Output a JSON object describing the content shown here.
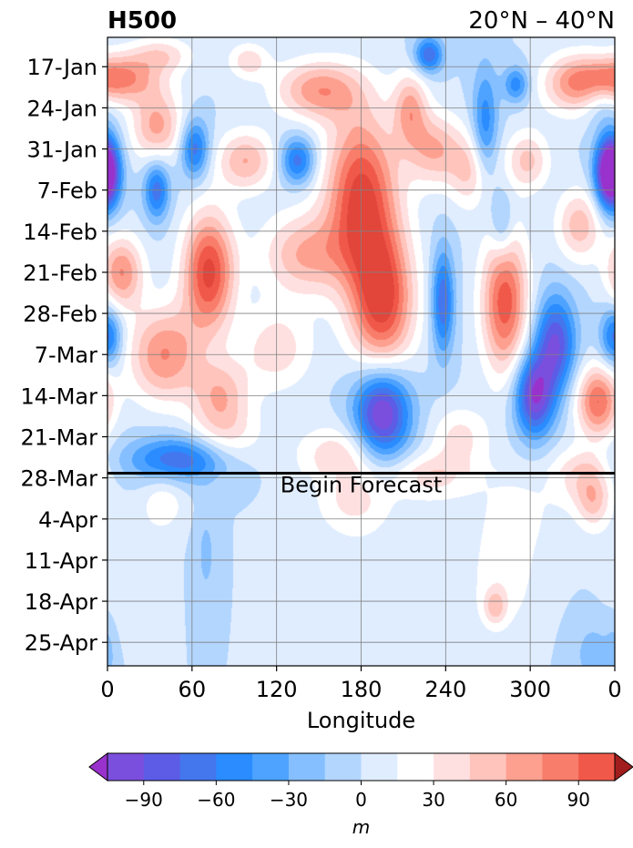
{
  "chart_data": {
    "type": "heatmap",
    "title_left": "H500",
    "title_right": "20°N – 40°N",
    "xlabel": "Longitude",
    "ylabel": "",
    "x_ticks": [
      "0",
      "60",
      "120",
      "180",
      "240",
      "300",
      "0"
    ],
    "x_tick_values": [
      0,
      60,
      120,
      180,
      240,
      300,
      360
    ],
    "xlim": [
      0,
      360
    ],
    "y_ticks": [
      "17-Jan",
      "24-Jan",
      "31-Jan",
      "7-Feb",
      "14-Feb",
      "21-Feb",
      "28-Feb",
      "7-Mar",
      "14-Mar",
      "21-Mar",
      "28-Mar",
      "4-Apr",
      "11-Apr",
      "18-Apr",
      "25-Apr"
    ],
    "y_tick_day_index": [
      0,
      7,
      14,
      21,
      28,
      35,
      42,
      49,
      56,
      63,
      70,
      77,
      84,
      91,
      98
    ],
    "ylim_day_index": [
      -5,
      102
    ],
    "forecast_start_day_index": 69.2,
    "annotation": "Begin Forecast",
    "grid": true,
    "colorbar": {
      "label": "m",
      "ticks": [
        -90,
        -60,
        -30,
        0,
        30,
        60,
        90
      ],
      "tick_labels": [
        "−90",
        "−60",
        "−30",
        "0",
        "30",
        "60",
        "90"
      ],
      "levels": [
        -105,
        -90,
        -75,
        -60,
        -45,
        -30,
        -15,
        0,
        15,
        30,
        45,
        60,
        75,
        90,
        105
      ],
      "colors": [
        "#9932cc",
        "#7b4fdd",
        "#5c5ce6",
        "#4477ee",
        "#2a8cff",
        "#4da3ff",
        "#85bfff",
        "#b3d6ff",
        "#e0edff",
        "#ffffff",
        "#ffe0e0",
        "#ffc4bc",
        "#fda090",
        "#f87d6b",
        "#f0594a",
        "#e2453a",
        "#d03a30",
        "#bb2a25",
        "#a01e1e"
      ],
      "extend": "both"
    },
    "anomaly_centers": [
      {
        "lon": 5,
        "day": 2,
        "value": 85,
        "rlon": 30,
        "rday": 4
      },
      {
        "lon": 38,
        "day": -2,
        "value": 40,
        "rlon": 22,
        "rday": 3
      },
      {
        "lon": 100,
        "day": -1,
        "value": 40,
        "rlon": 14,
        "rday": 3
      },
      {
        "lon": 150,
        "day": 4,
        "value": 70,
        "rlon": 30,
        "rday": 5
      },
      {
        "lon": 228,
        "day": -2,
        "value": -75,
        "rlon": 10,
        "rday": 3
      },
      {
        "lon": 215,
        "day": 7,
        "value": 60,
        "rlon": 12,
        "rday": 6
      },
      {
        "lon": 268,
        "day": 10,
        "value": -55,
        "rlon": 9,
        "rday": 10
      },
      {
        "lon": 290,
        "day": 3,
        "value": -55,
        "rlon": 9,
        "rday": 3
      },
      {
        "lon": 330,
        "day": 3,
        "value": 60,
        "rlon": 22,
        "rday": 5
      },
      {
        "lon": 350,
        "day": 6,
        "value": -20,
        "rlon": 12,
        "rday": 4
      },
      {
        "lon": 355,
        "day": 18,
        "value": -95,
        "rlon": 10,
        "rday": 6
      },
      {
        "lon": 0,
        "day": 18,
        "value": -95,
        "rlon": 10,
        "rday": 6
      },
      {
        "lon": 35,
        "day": 10,
        "value": 65,
        "rlon": 18,
        "rday": 6
      },
      {
        "lon": 62,
        "day": 14,
        "value": -70,
        "rlon": 10,
        "rday": 5
      },
      {
        "lon": 35,
        "day": 21,
        "value": -70,
        "rlon": 9,
        "rday": 5
      },
      {
        "lon": 98,
        "day": 16,
        "value": 60,
        "rlon": 20,
        "rday": 5
      },
      {
        "lon": 135,
        "day": 16,
        "value": -70,
        "rlon": 12,
        "rday": 4
      },
      {
        "lon": 180,
        "day": 22,
        "value": 110,
        "rlon": 25,
        "rday": 14
      },
      {
        "lon": 195,
        "day": 40,
        "value": 110,
        "rlon": 22,
        "rday": 12
      },
      {
        "lon": 232,
        "day": 14,
        "value": 60,
        "rlon": 20,
        "rday": 6
      },
      {
        "lon": 258,
        "day": 18,
        "value": 45,
        "rlon": 15,
        "rday": 6
      },
      {
        "lon": 298,
        "day": 16,
        "value": 50,
        "rlon": 15,
        "rday": 5
      },
      {
        "lon": 335,
        "day": 27,
        "value": 55,
        "rlon": 16,
        "rday": 6
      },
      {
        "lon": 280,
        "day": 27,
        "value": -40,
        "rlon": 8,
        "rday": 6
      },
      {
        "lon": 10,
        "day": 35,
        "value": 75,
        "rlon": 15,
        "rday": 6
      },
      {
        "lon": 72,
        "day": 35,
        "value": 110,
        "rlon": 18,
        "rday": 10
      },
      {
        "lon": 140,
        "day": 32,
        "value": 60,
        "rlon": 30,
        "rday": 7
      },
      {
        "lon": 120,
        "day": 48,
        "value": 40,
        "rlon": 25,
        "rday": 7
      },
      {
        "lon": 238,
        "day": 40,
        "value": -75,
        "rlon": 8,
        "rday": 9
      },
      {
        "lon": 282,
        "day": 40,
        "value": 100,
        "rlon": 16,
        "rday": 12
      },
      {
        "lon": 318,
        "day": 47,
        "value": -90,
        "rlon": 14,
        "rday": 8
      },
      {
        "lon": 303,
        "day": 56,
        "value": -105,
        "rlon": 14,
        "rday": 7
      },
      {
        "lon": 348,
        "day": 57,
        "value": 90,
        "rlon": 15,
        "rday": 6
      },
      {
        "lon": 0,
        "day": 46,
        "value": -70,
        "rlon": 10,
        "rday": 5
      },
      {
        "lon": 40,
        "day": 49,
        "value": 75,
        "rlon": 25,
        "rday": 8
      },
      {
        "lon": 80,
        "day": 56,
        "value": 55,
        "rlon": 20,
        "rday": 6
      },
      {
        "lon": 195,
        "day": 59,
        "value": -115,
        "rlon": 20,
        "rday": 8
      },
      {
        "lon": 165,
        "day": 66,
        "value": 40,
        "rlon": 30,
        "rday": 5
      },
      {
        "lon": 85,
        "day": 63,
        "value": 30,
        "rlon": 25,
        "rday": 5
      },
      {
        "lon": 50,
        "day": 67,
        "value": -75,
        "rlon": 35,
        "rday": 4
      },
      {
        "lon": 250,
        "day": 63,
        "value": 35,
        "rlon": 20,
        "rday": 5
      },
      {
        "lon": 230,
        "day": 70,
        "value": 45,
        "rlon": 30,
        "rday": 4
      },
      {
        "lon": 335,
        "day": 70,
        "value": 45,
        "rlon": 20,
        "rday": 5
      },
      {
        "lon": 345,
        "day": 74,
        "value": 60,
        "rlon": 12,
        "rday": 5
      },
      {
        "lon": 40,
        "day": 74,
        "value": 35,
        "rlon": 15,
        "rday": 5
      },
      {
        "lon": 175,
        "day": 74,
        "value": 40,
        "rlon": 25,
        "rday": 5
      },
      {
        "lon": 290,
        "day": 76,
        "value": 25,
        "rlon": 30,
        "rday": 8
      },
      {
        "lon": 70,
        "day": 83,
        "value": -25,
        "rlon": 8,
        "rday": 9
      },
      {
        "lon": 280,
        "day": 88,
        "value": 30,
        "rlon": 25,
        "rday": 9
      },
      {
        "lon": 275,
        "day": 92,
        "value": 55,
        "rlon": 8,
        "rday": 3
      },
      {
        "lon": 15,
        "day": 86,
        "value": 18,
        "rlon": 20,
        "rday": 10
      },
      {
        "lon": 180,
        "day": 85,
        "value": 12,
        "rlon": 40,
        "rday": 15
      },
      {
        "lon": 345,
        "day": 100,
        "value": -30,
        "rlon": 15,
        "rday": 6
      },
      {
        "lon": 0,
        "day": 100,
        "value": -22,
        "rlon": 6,
        "rday": 6
      }
    ]
  }
}
